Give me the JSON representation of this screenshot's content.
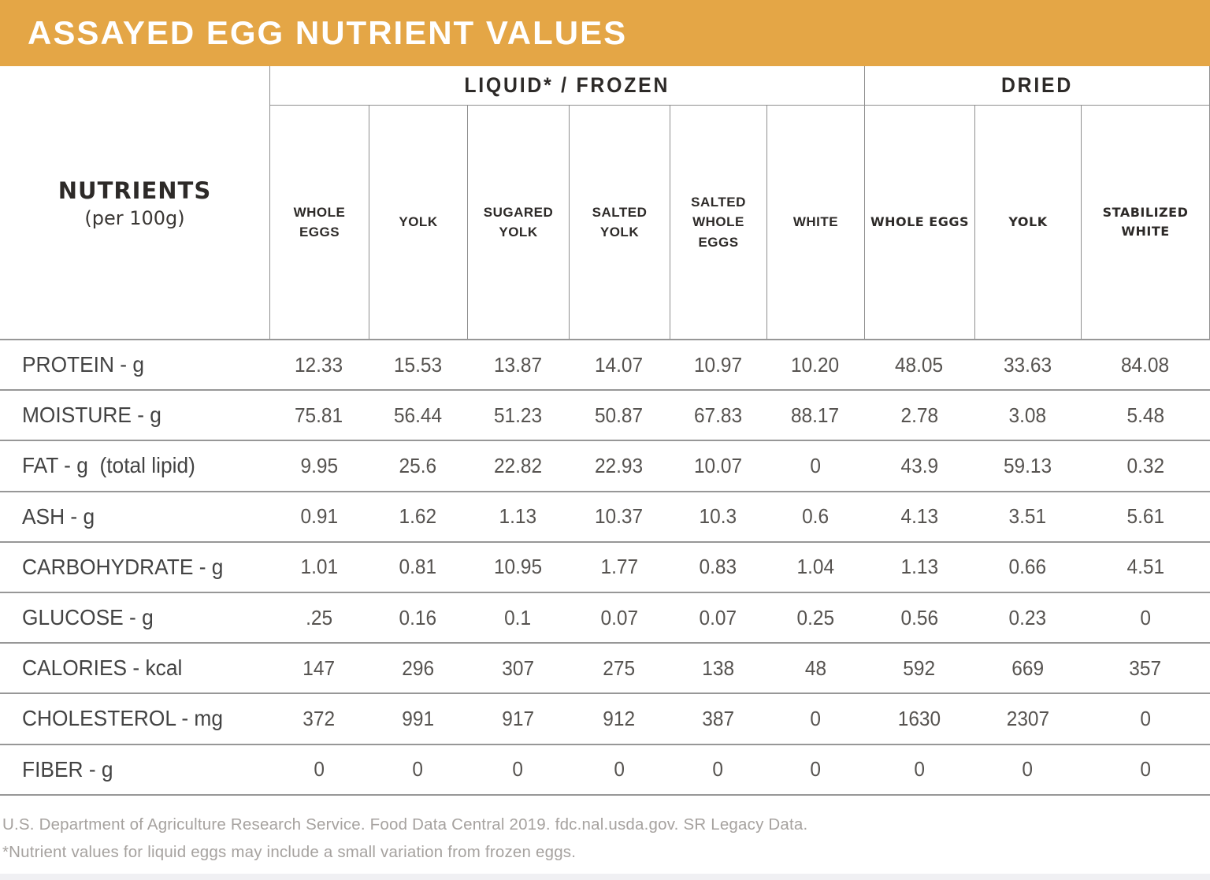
{
  "title": "ASSAYED EGG NUTRIENT VALUES",
  "colors": {
    "banner": "#E4A646",
    "title_text": "#FFFFFF",
    "header_text": "#2D2A28",
    "grid_line": "#8F8F8F",
    "row_line": "#979797",
    "footer_text": "#A6A29F"
  },
  "table": {
    "row_header_title": "NUTRIENTS",
    "row_header_subtitle": "(per 100g)",
    "groups": [
      {
        "label": "LIQUID* / FROZEN",
        "span": 6
      },
      {
        "label": "DRIED",
        "span": 3
      }
    ],
    "columns": [
      "WHOLE EGGS",
      "YOLK",
      "SUGARED YOLK",
      "SALTED YOLK",
      "SALTED WHOLE EGGS",
      "WHITE",
      "WHOLE EGGS",
      "YOLK",
      "STABILIZED WHITE"
    ],
    "rows": [
      {
        "label": "PROTEIN - g",
        "values": [
          "12.33",
          "15.53",
          "13.87",
          "14.07",
          "10.97",
          "10.20",
          "48.05",
          "33.63",
          "84.08"
        ]
      },
      {
        "label": "MOISTURE - g",
        "values": [
          "75.81",
          "56.44",
          "51.23",
          "50.87",
          "67.83",
          "88.17",
          "2.78",
          "3.08",
          "5.48"
        ]
      },
      {
        "label": "FAT - g  (total lipid)",
        "values": [
          "9.95",
          "25.6",
          "22.82",
          "22.93",
          "10.07",
          "0",
          "43.9",
          "59.13",
          "0.32"
        ]
      },
      {
        "label": "ASH - g",
        "values": [
          "0.91",
          "1.62",
          "1.13",
          "10.37",
          "10.3",
          "0.6",
          "4.13",
          "3.51",
          "5.61"
        ]
      },
      {
        "label": "CARBOHYDRATE - g",
        "values": [
          "1.01",
          "0.81",
          "10.95",
          "1.77",
          "0.83",
          "1.04",
          "1.13",
          "0.66",
          "4.51"
        ]
      },
      {
        "label": "GLUCOSE - g",
        "values": [
          ".25",
          "0.16",
          "0.1",
          "0.07",
          "0.07",
          "0.25",
          "0.56",
          "0.23",
          "0"
        ]
      },
      {
        "label": "CALORIES - kcal",
        "values": [
          "147",
          "296",
          "307",
          "275",
          "138",
          "48",
          "592",
          "669",
          "357"
        ]
      },
      {
        "label": "CHOLESTEROL - mg",
        "values": [
          "372",
          "991",
          "917",
          "912",
          "387",
          "0",
          "1630",
          "2307",
          "0"
        ]
      },
      {
        "label": "FIBER - g",
        "values": [
          "0",
          "0",
          "0",
          "0",
          "0",
          "0",
          "0",
          "0",
          "0"
        ]
      }
    ]
  },
  "footer": {
    "source": "U.S. Department of Agriculture Research Service. Food Data Central 2019. fdc.nal.usda.gov. SR Legacy Data.",
    "note": "*Nutrient values for liquid eggs may include a small variation from frozen eggs."
  }
}
